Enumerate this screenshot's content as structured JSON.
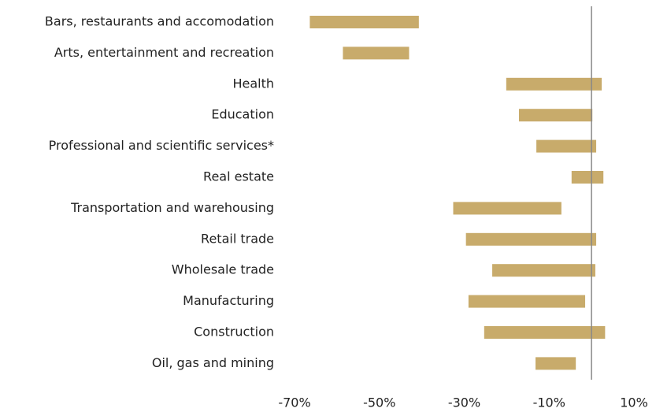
{
  "chart_data": {
    "type": "floating_bar",
    "categories": [
      "Bars, restaurants and accomodation",
      "Arts, entertainment and recreation",
      "Health",
      "Education",
      "Professional and scientific services*",
      "Real estate",
      "Transportation and warehousing",
      "Retail trade",
      "Wholesale trade",
      "Manufacturing",
      "Construction",
      "Oil, gas and mining"
    ],
    "low": [
      -66.4,
      -58.6,
      -20.1,
      -17.1,
      -13,
      -4.7,
      -32.6,
      -29.6,
      -23.4,
      -29,
      -25.3,
      -13.2
    ],
    "high": [
      -40.7,
      -43,
      2.4,
      0.2,
      1.1,
      2.8,
      -7.1,
      1.1,
      0.9,
      -1.5,
      3.2,
      -3.7
    ],
    "color": "#c8ab6b",
    "xlim": [
      -70,
      10
    ],
    "xticks": [
      {
        "value": -70,
        "label": "-70%"
      },
      {
        "value": -50,
        "label": "-50%"
      },
      {
        "value": -30,
        "label": "-30%"
      },
      {
        "value": -10,
        "label": "-10%"
      },
      {
        "value": 10,
        "label": "10%"
      }
    ]
  }
}
